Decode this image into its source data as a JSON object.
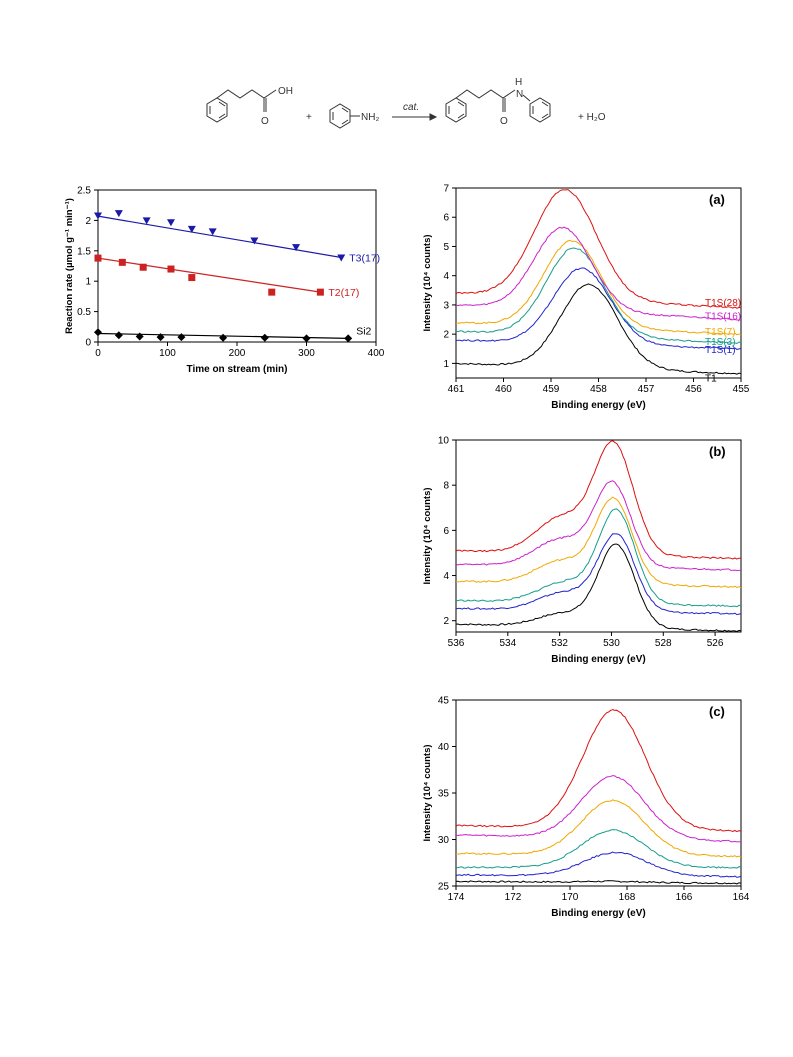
{
  "scheme": {
    "plus_1": "+",
    "amine_label": "NH₂",
    "arrow_label": "cat.",
    "acid_label": "OH",
    "carbonyl_o_1": "O",
    "carbonyl_o_2": "O",
    "amide_h": "H",
    "amide_n": "N",
    "plus_water": "+ H₂O"
  },
  "chart_data": [
    {
      "id": "rate",
      "type": "scatter",
      "title": "",
      "xlabel": "Time on stream (min)",
      "ylabel": "Reaction rate (µmol g⁻¹ min⁻¹)",
      "xlim": [
        0,
        400
      ],
      "ylim": [
        0,
        2.5
      ],
      "xticks": [
        0,
        100,
        200,
        300,
        400
      ],
      "yticks": [
        0,
        0.5,
        1,
        1.5,
        2,
        2.5
      ],
      "series": [
        {
          "name": "T3(17)",
          "color": "#1a1aa8",
          "marker": "triangle-down",
          "x": [
            0,
            30,
            70,
            105,
            135,
            165,
            225,
            285,
            350
          ],
          "y": [
            2.08,
            2.12,
            2.0,
            1.97,
            1.86,
            1.82,
            1.67,
            1.56,
            1.39
          ],
          "fit": {
            "x": [
              0,
              350
            ],
            "y": [
              2.07,
              1.39
            ]
          }
        },
        {
          "name": "T2(17)",
          "color": "#cc2222",
          "marker": "square",
          "x": [
            0,
            35,
            65,
            105,
            135,
            250,
            320
          ],
          "y": [
            1.38,
            1.31,
            1.23,
            1.2,
            1.06,
            0.82,
            0.82
          ],
          "fit": {
            "x": [
              0,
              320
            ],
            "y": [
              1.38,
              0.82
            ]
          }
        },
        {
          "name": "Si2",
          "color": "#000000",
          "marker": "diamond",
          "x": [
            0,
            30,
            60,
            90,
            120,
            180,
            240,
            300,
            360
          ],
          "y": [
            0.16,
            0.11,
            0.09,
            0.08,
            0.08,
            0.07,
            0.07,
            0.06,
            0.06
          ],
          "fit": {
            "x": [
              0,
              360
            ],
            "y": [
              0.14,
              0.06
            ]
          }
        }
      ]
    },
    {
      "id": "a",
      "type": "line",
      "panel_label": "(a)",
      "xlabel": "Binding energy (eV)",
      "ylabel": "Intensity (10⁴ counts)",
      "xlim": [
        461,
        455
      ],
      "ylim": [
        0.5,
        7
      ],
      "xticks": [
        461,
        460,
        459,
        458,
        457,
        456,
        455
      ],
      "yticks": [
        1,
        2,
        3,
        4,
        5,
        6,
        7
      ],
      "series": [
        {
          "name": "T1",
          "color": "#000000",
          "base": 1.0,
          "tail": 0.65,
          "peak_x": 458.2,
          "peak_y": 3.7,
          "width": 0.6,
          "shoulder": 0.0
        },
        {
          "name": "T1S(1)",
          "color": "#2222cc",
          "base": 1.8,
          "tail": 1.5,
          "peak_x": 458.35,
          "peak_y": 4.25,
          "width": 0.6,
          "shoulder": 0.0
        },
        {
          "name": "T1S(3)",
          "color": "#169e8c",
          "base": 2.1,
          "tail": 1.7,
          "peak_x": 458.5,
          "peak_y": 4.95,
          "width": 0.6,
          "shoulder": 0.0
        },
        {
          "name": "T1S(7)",
          "color": "#f0a800",
          "base": 2.4,
          "tail": 2.0,
          "peak_x": 458.55,
          "peak_y": 5.2,
          "width": 0.6,
          "shoulder": 0.0
        },
        {
          "name": "T1S(16)",
          "color": "#cc22cc",
          "base": 3.0,
          "tail": 2.5,
          "peak_x": 458.75,
          "peak_y": 5.65,
          "width": 0.6,
          "shoulder": 0.0
        },
        {
          "name": "T1S(28)",
          "color": "#dd1111",
          "base": 3.4,
          "tail": 2.9,
          "peak_x": 458.7,
          "peak_y": 6.95,
          "width": 0.65,
          "shoulder": 0.0
        }
      ]
    },
    {
      "id": "b",
      "type": "line",
      "panel_label": "(b)",
      "xlabel": "Binding energy (eV)",
      "ylabel": "Intensity (10⁴ counts)",
      "xlim": [
        536,
        525
      ],
      "ylim": [
        1.5,
        10
      ],
      "xticks": [
        536,
        534,
        532,
        530,
        528,
        526
      ],
      "yticks": [
        2,
        4,
        6,
        8,
        10
      ],
      "series": [
        {
          "name": "",
          "color": "#000000",
          "base": 1.85,
          "tail": 1.55,
          "peak_x": 529.8,
          "peak_y": 5.3,
          "width": 0.7,
          "shoulder": 0.6
        },
        {
          "name": "",
          "color": "#2222cc",
          "base": 2.55,
          "tail": 2.3,
          "peak_x": 529.8,
          "peak_y": 5.75,
          "width": 0.7,
          "shoulder": 0.8
        },
        {
          "name": "",
          "color": "#169e8c",
          "base": 2.9,
          "tail": 2.65,
          "peak_x": 529.8,
          "peak_y": 6.8,
          "width": 0.7,
          "shoulder": 0.9
        },
        {
          "name": "",
          "color": "#f0a800",
          "base": 3.75,
          "tail": 3.5,
          "peak_x": 529.9,
          "peak_y": 7.3,
          "width": 0.7,
          "shoulder": 1.0
        },
        {
          "name": "",
          "color": "#cc22cc",
          "base": 4.5,
          "tail": 4.25,
          "peak_x": 529.95,
          "peak_y": 8.0,
          "width": 0.7,
          "shoulder": 1.2
        },
        {
          "name": "",
          "color": "#dd1111",
          "base": 5.1,
          "tail": 4.75,
          "peak_x": 529.9,
          "peak_y": 9.7,
          "width": 0.75,
          "shoulder": 1.6
        }
      ]
    },
    {
      "id": "c",
      "type": "line",
      "panel_label": "(c)",
      "xlabel": "Binding energy (eV)",
      "ylabel": "Intensity (10⁴ counts)",
      "xlim": [
        174,
        164
      ],
      "ylim": [
        25,
        45
      ],
      "xticks": [
        174,
        172,
        170,
        168,
        166,
        164
      ],
      "yticks": [
        25,
        30,
        35,
        40,
        45
      ],
      "series": [
        {
          "name": "",
          "color": "#000000",
          "base": 25.5,
          "tail": 25.3,
          "peak_x": 168.5,
          "peak_y": 25.5,
          "width": 1.0,
          "shoulder": 0.0
        },
        {
          "name": "",
          "color": "#2222cc",
          "base": 26.2,
          "tail": 26.0,
          "peak_x": 168.4,
          "peak_y": 28.6,
          "width": 1.1,
          "shoulder": 0.0
        },
        {
          "name": "",
          "color": "#169e8c",
          "base": 27.0,
          "tail": 27.0,
          "peak_x": 168.5,
          "peak_y": 31.0,
          "width": 1.1,
          "shoulder": 0.0
        },
        {
          "name": "",
          "color": "#f0a800",
          "base": 28.5,
          "tail": 28.2,
          "peak_x": 168.5,
          "peak_y": 34.2,
          "width": 1.1,
          "shoulder": 0.0
        },
        {
          "name": "",
          "color": "#cc22cc",
          "base": 30.5,
          "tail": 29.8,
          "peak_x": 168.5,
          "peak_y": 36.8,
          "width": 1.1,
          "shoulder": 0.0
        },
        {
          "name": "",
          "color": "#dd1111",
          "base": 31.5,
          "tail": 30.9,
          "peak_x": 168.45,
          "peak_y": 43.9,
          "width": 1.1,
          "shoulder": 0.0
        }
      ]
    }
  ]
}
